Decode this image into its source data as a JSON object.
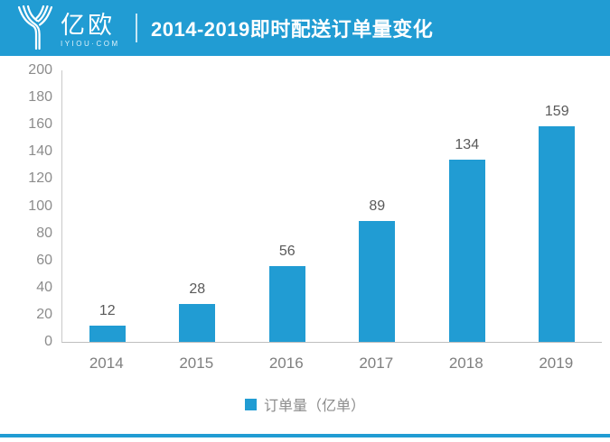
{
  "header": {
    "logo_text": "亿欧",
    "logo_subtext": "IYIOU·COM",
    "title": "2014-2019即时配送订单量变化"
  },
  "colors": {
    "brand": "#219cd3",
    "bar": "#219cd3",
    "axis_line": "#c9c9c9",
    "tick_label": "#8c8c8c",
    "value_label": "#595959",
    "category_label": "#7f7f7f"
  },
  "chart_data": {
    "type": "bar",
    "title": "2014-2019即时配送订单量变化",
    "categories": [
      "2014",
      "2015",
      "2016",
      "2017",
      "2018",
      "2019"
    ],
    "values": [
      12,
      28,
      56,
      89,
      134,
      159
    ],
    "series_name": "订单量（亿单）",
    "xlabel": "",
    "ylabel": "",
    "ylim": [
      0,
      200
    ],
    "ytick_step": 20,
    "grid": false,
    "legend_position": "bottom"
  },
  "legend": {
    "label": "订单量（亿单）"
  }
}
